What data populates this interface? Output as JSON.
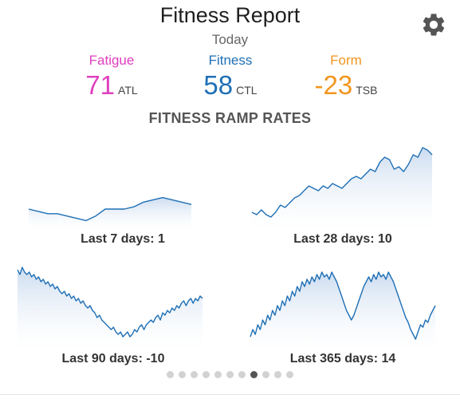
{
  "header": {
    "title": "Fitness Report",
    "subtitle": "Today",
    "settings_icon": "gear-icon"
  },
  "stats": [
    {
      "label": "Fatigue",
      "value": "71",
      "unit": "ATL",
      "color": "#e03fbf"
    },
    {
      "label": "Fitness",
      "value": "58",
      "unit": "CTL",
      "color": "#1f6fb5"
    },
    {
      "label": "Form",
      "value": "-23",
      "unit": "TSB",
      "color": "#f2951f"
    }
  ],
  "section_title": "FITNESS RAMP RATES",
  "chart_data": [
    {
      "type": "area",
      "title": "Last 7 days: 1",
      "values": [
        53,
        52,
        51,
        51,
        50,
        49,
        48,
        50,
        53,
        53,
        53,
        54,
        56,
        57,
        58,
        57,
        56,
        55
      ],
      "ylim": [
        44,
        62
      ],
      "color": "#1f6fb5"
    },
    {
      "type": "area",
      "title": "Last 28 days: 10",
      "values": [
        34,
        33,
        35,
        33,
        32,
        34,
        37,
        36,
        38,
        40,
        41,
        43,
        45,
        44,
        43,
        45,
        44,
        46,
        45,
        44,
        46,
        48,
        49,
        48,
        50,
        52,
        51,
        55,
        57,
        56,
        52,
        53,
        51,
        54,
        58,
        57,
        61,
        60,
        58
      ],
      "ylim": [
        26,
        64
      ],
      "color": "#1f6fb5"
    },
    {
      "type": "area",
      "title": "Last 90 days: -10",
      "values": [
        60,
        58,
        61,
        59,
        58,
        59,
        57,
        58,
        56,
        57,
        55,
        56,
        54,
        55,
        53,
        54,
        52,
        53,
        51,
        50,
        51,
        49,
        50,
        48,
        49,
        47,
        48,
        46,
        47,
        45,
        44,
        45,
        43,
        42,
        40,
        41,
        39,
        38,
        37,
        36,
        35,
        36,
        34,
        33,
        34,
        32,
        33,
        34,
        32,
        33,
        35,
        34,
        36,
        37,
        35,
        37,
        38,
        39,
        38,
        40,
        41,
        39,
        42,
        41,
        43,
        42,
        44,
        43,
        45,
        44,
        46,
        47,
        45,
        47,
        48,
        46,
        48,
        47,
        49,
        48
      ],
      "ylim": [
        26,
        64
      ],
      "color": "#1f6fb5"
    },
    {
      "type": "area",
      "title": "Last 365 days: 14",
      "values": [
        30,
        33,
        31,
        35,
        33,
        37,
        35,
        39,
        37,
        41,
        39,
        43,
        41,
        45,
        43,
        47,
        45,
        49,
        47,
        51,
        49,
        53,
        51,
        54,
        52,
        55,
        53,
        56,
        54,
        57,
        55,
        56,
        54,
        57,
        55,
        53,
        50,
        47,
        44,
        41,
        39,
        37,
        39,
        42,
        45,
        48,
        51,
        53,
        55,
        53,
        56,
        54,
        57,
        55,
        56,
        54,
        57,
        55,
        53,
        50,
        47,
        44,
        41,
        38,
        36,
        33,
        31,
        29,
        32,
        35,
        34,
        37,
        36,
        39,
        41,
        43
      ],
      "ylim": [
        24,
        62
      ],
      "color": "#1f6fb5"
    }
  ],
  "pager": {
    "count": 11,
    "active": 7
  }
}
